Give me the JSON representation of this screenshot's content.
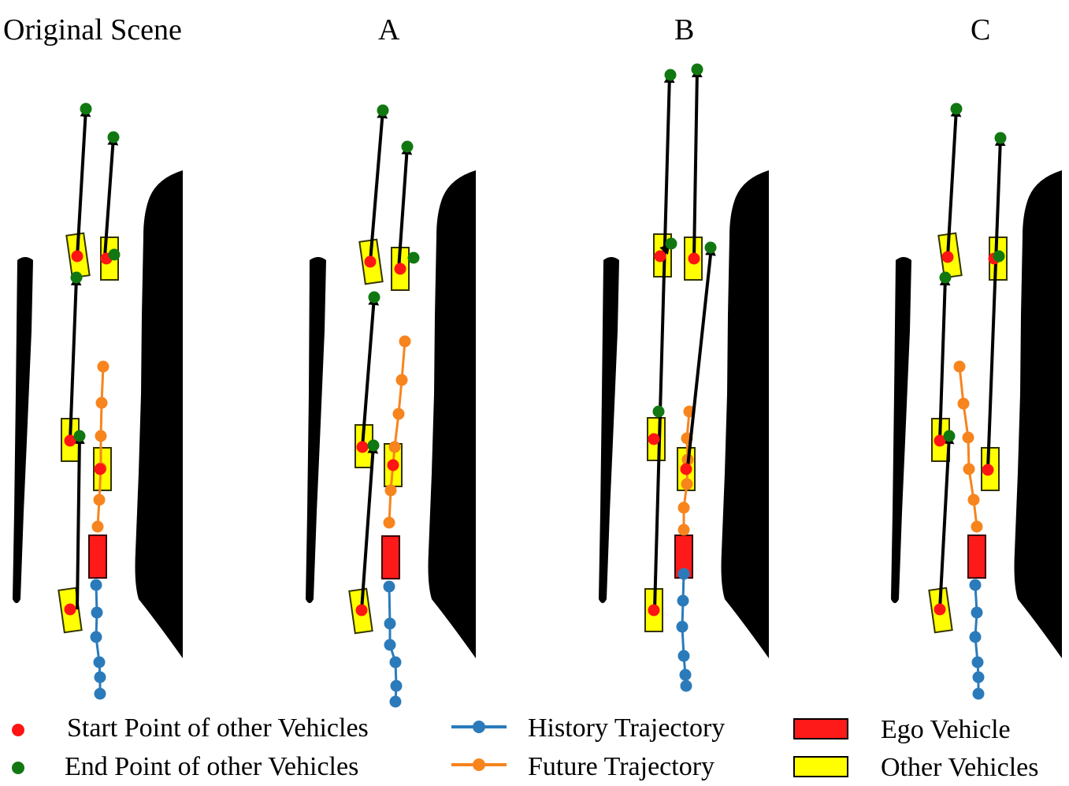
{
  "panels": [
    {
      "title": "Original Scene",
      "yellow": [
        [
          99,
          324,
          -8
        ],
        [
          139,
          328,
          0
        ],
        [
          89,
          558,
          0
        ],
        [
          130,
          595,
          0
        ],
        [
          89,
          774,
          -8
        ]
      ],
      "arrows": [
        [
          89,
          559,
          97,
          352
        ],
        [
          98,
          326,
          109,
          138
        ],
        [
          98,
          773,
          101,
          553
        ],
        [
          133,
          326,
          144,
          174
        ]
      ],
      "redDots": [
        [
          98,
          325
        ],
        [
          135,
          328
        ],
        [
          89,
          559
        ],
        [
          127,
          595
        ],
        [
          89,
          773
        ]
      ],
      "greenDots": [
        [
          109,
          138
        ],
        [
          144,
          174
        ],
        [
          145,
          323
        ],
        [
          97,
          352
        ],
        [
          101,
          553
        ]
      ],
      "future": [
        [
          131,
          465
        ],
        [
          129,
          511
        ],
        [
          128,
          553
        ],
        [
          128,
          594
        ],
        [
          126,
          634
        ],
        [
          124,
          668
        ]
      ],
      "history": [
        [
          122,
          742
        ],
        [
          123,
          777
        ],
        [
          122,
          808
        ],
        [
          126,
          840
        ],
        [
          127,
          859
        ],
        [
          127,
          880
        ]
      ]
    },
    {
      "title": "A",
      "yellow": [
        [
          471,
          332,
          -8
        ],
        [
          508,
          341,
          0
        ],
        [
          462,
          566,
          0
        ],
        [
          499,
          590,
          0
        ],
        [
          458,
          775,
          -8
        ]
      ],
      "arrows": [
        [
          460,
          567,
          475,
          377
        ],
        [
          470,
          332,
          486,
          140
        ],
        [
          459,
          774,
          474,
          565
        ],
        [
          506,
          342,
          517,
          186
        ]
      ],
      "redDots": [
        [
          470,
          332
        ],
        [
          508,
          341
        ],
        [
          460,
          567
        ],
        [
          499,
          590
        ],
        [
          459,
          774
        ]
      ],
      "greenDots": [
        [
          486,
          140
        ],
        [
          517,
          186
        ],
        [
          525,
          327
        ],
        [
          475,
          377
        ],
        [
          474,
          565
        ]
      ],
      "future": [
        [
          514,
          433
        ],
        [
          510,
          482
        ],
        [
          506,
          525
        ],
        [
          501,
          567
        ],
        [
          496,
          622
        ],
        [
          494,
          663
        ]
      ],
      "history": [
        [
          494,
          744
        ],
        [
          495,
          791
        ],
        [
          495,
          818
        ],
        [
          502,
          840
        ],
        [
          503,
          870
        ],
        [
          502,
          890
        ]
      ]
    },
    {
      "title": "B",
      "yellow": [
        [
          841,
          324,
          0
        ],
        [
          880,
          328,
          0
        ],
        [
          833,
          557,
          0
        ],
        [
          871,
          595,
          0
        ],
        [
          830,
          774,
          0
        ]
      ],
      "arrows": [
        [
          831,
          773,
          850,
          95
        ],
        [
          881,
          327,
          885,
          88
        ],
        [
          838,
          324,
          849,
          311
        ],
        [
          873,
          592,
          903,
          314
        ]
      ],
      "redDots": [
        [
          838,
          325
        ],
        [
          881,
          328
        ],
        [
          830,
          557
        ],
        [
          871,
          595
        ],
        [
          830,
          774
        ]
      ],
      "greenDots": [
        [
          851,
          95
        ],
        [
          885,
          88
        ],
        [
          852,
          309
        ],
        [
          902,
          314
        ],
        [
          836,
          522
        ]
      ],
      "future": [
        [
          875,
          522
        ],
        [
          872,
          556
        ],
        [
          873,
          583
        ],
        [
          872,
          614
        ],
        [
          868,
          644
        ],
        [
          868,
          672
        ]
      ],
      "history": [
        [
          868,
          728
        ],
        [
          867,
          762
        ],
        [
          866,
          795
        ],
        [
          868,
          832
        ],
        [
          870,
          856
        ],
        [
          871,
          870
        ]
      ]
    },
    {
      "title": "C",
      "yellow": [
        [
          1206,
          324,
          -8
        ],
        [
          1267,
          328,
          0
        ],
        [
          1194,
          558,
          0
        ],
        [
          1257,
          595,
          0
        ],
        [
          1194,
          774,
          -8
        ]
      ],
      "arrows": [
        [
          1193,
          559,
          1200,
          352
        ],
        [
          1203,
          326,
          1214,
          138
        ],
        [
          1193,
          773,
          1205,
          553
        ],
        [
          1254,
          596,
          1270,
          175
        ]
      ],
      "redDots": [
        [
          1203,
          326
        ],
        [
          1262,
          328
        ],
        [
          1193,
          559
        ],
        [
          1254,
          596
        ],
        [
          1193,
          773
        ]
      ],
      "greenDots": [
        [
          1214,
          138
        ],
        [
          1270,
          175
        ],
        [
          1268,
          325
        ],
        [
          1200,
          352
        ],
        [
          1205,
          553
        ]
      ],
      "future": [
        [
          1218,
          465
        ],
        [
          1223,
          512
        ],
        [
          1229,
          555
        ],
        [
          1230,
          595
        ],
        [
          1236,
          634
        ],
        [
          1240,
          668
        ]
      ],
      "history": [
        [
          1238,
          742
        ],
        [
          1240,
          777
        ],
        [
          1238,
          808
        ],
        [
          1241,
          840
        ],
        [
          1242,
          859
        ],
        [
          1242,
          880
        ]
      ]
    }
  ],
  "legend": {
    "start": "Start Point of other Vehicles",
    "end": "End Point of other Vehicles",
    "history": "History Trajectory",
    "future": "Future Trajectory",
    "ego": "Ego Vehicle",
    "others": "Other Vehicles"
  },
  "colors": {
    "start": "#ff1414",
    "end": "#117711",
    "history": "#2b7bbb",
    "future": "#f7841d",
    "ego": "#ff1a1a",
    "others": "#ffff00",
    "road": "#000000"
  }
}
